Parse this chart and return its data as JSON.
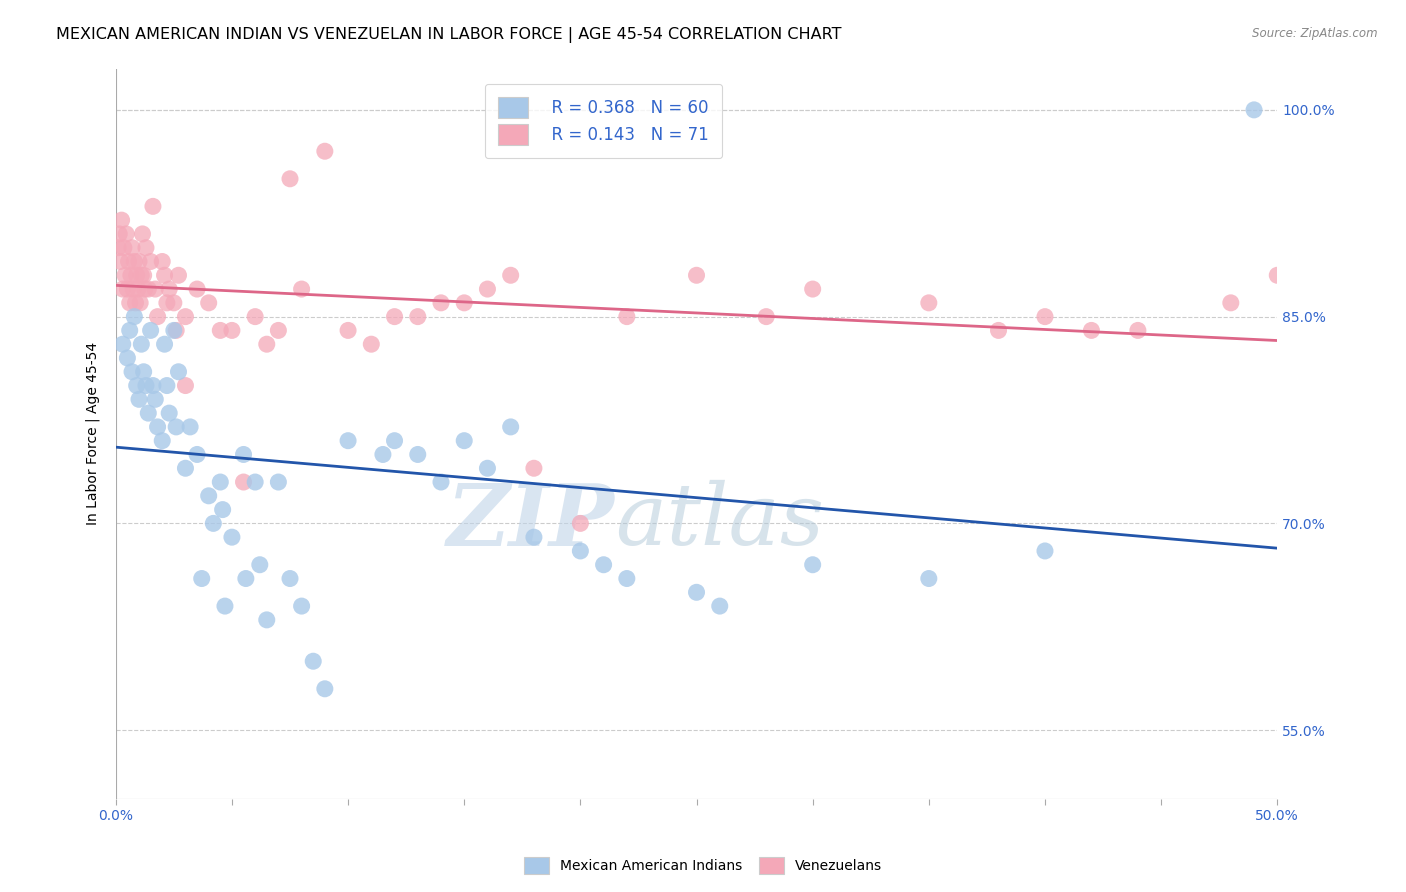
{
  "title": "MEXICAN AMERICAN INDIAN VS VENEZUELAN IN LABOR FORCE | AGE 45-54 CORRELATION CHART",
  "source": "Source: ZipAtlas.com",
  "ylabel": "In Labor Force | Age 45-54",
  "legend_blue_r": "R = 0.368",
  "legend_blue_n": "N = 60",
  "legend_pink_r": "R = 0.143",
  "legend_pink_n": "N = 71",
  "blue_label": "Mexican American Indians",
  "pink_label": "Venezuelans",
  "blue_color": "#a8c8e8",
  "pink_color": "#f4a8b8",
  "blue_line_color": "#2255aa",
  "pink_line_color": "#dd6688",
  "watermark_zip": "ZIP",
  "watermark_atlas": "atlas",
  "blue_points": [
    [
      0.3,
      83.0
    ],
    [
      0.5,
      82.0
    ],
    [
      0.6,
      84.0
    ],
    [
      0.7,
      81.0
    ],
    [
      0.8,
      85.0
    ],
    [
      0.9,
      80.0
    ],
    [
      1.0,
      79.0
    ],
    [
      1.1,
      83.0
    ],
    [
      1.2,
      81.0
    ],
    [
      1.3,
      80.0
    ],
    [
      1.4,
      78.0
    ],
    [
      1.5,
      84.0
    ],
    [
      1.6,
      80.0
    ],
    [
      1.7,
      79.0
    ],
    [
      1.8,
      77.0
    ],
    [
      2.0,
      76.0
    ],
    [
      2.1,
      83.0
    ],
    [
      2.2,
      80.0
    ],
    [
      2.3,
      78.0
    ],
    [
      2.5,
      84.0
    ],
    [
      2.6,
      77.0
    ],
    [
      2.7,
      81.0
    ],
    [
      3.0,
      74.0
    ],
    [
      3.2,
      77.0
    ],
    [
      3.5,
      75.0
    ],
    [
      3.7,
      66.0
    ],
    [
      4.0,
      72.0
    ],
    [
      4.2,
      70.0
    ],
    [
      4.5,
      73.0
    ],
    [
      4.6,
      71.0
    ],
    [
      4.7,
      64.0
    ],
    [
      5.0,
      69.0
    ],
    [
      5.5,
      75.0
    ],
    [
      5.6,
      66.0
    ],
    [
      6.0,
      73.0
    ],
    [
      6.2,
      67.0
    ],
    [
      6.5,
      63.0
    ],
    [
      7.0,
      73.0
    ],
    [
      7.5,
      66.0
    ],
    [
      8.0,
      64.0
    ],
    [
      8.5,
      60.0
    ],
    [
      9.0,
      58.0
    ],
    [
      10.0,
      76.0
    ],
    [
      11.5,
      75.0
    ],
    [
      12.0,
      76.0
    ],
    [
      13.0,
      75.0
    ],
    [
      14.0,
      73.0
    ],
    [
      15.0,
      76.0
    ],
    [
      16.0,
      74.0
    ],
    [
      17.0,
      77.0
    ],
    [
      18.0,
      69.0
    ],
    [
      20.0,
      68.0
    ],
    [
      21.0,
      67.0
    ],
    [
      22.0,
      66.0
    ],
    [
      25.0,
      65.0
    ],
    [
      26.0,
      64.0
    ],
    [
      30.0,
      67.0
    ],
    [
      35.0,
      66.0
    ],
    [
      40.0,
      68.0
    ],
    [
      49.0,
      100.0
    ]
  ],
  "pink_points": [
    [
      0.1,
      90.0
    ],
    [
      0.15,
      91.0
    ],
    [
      0.2,
      89.0
    ],
    [
      0.25,
      92.0
    ],
    [
      0.3,
      87.0
    ],
    [
      0.35,
      90.0
    ],
    [
      0.4,
      88.0
    ],
    [
      0.45,
      91.0
    ],
    [
      0.5,
      87.0
    ],
    [
      0.55,
      89.0
    ],
    [
      0.6,
      86.0
    ],
    [
      0.65,
      88.0
    ],
    [
      0.7,
      90.0
    ],
    [
      0.75,
      87.0
    ],
    [
      0.8,
      89.0
    ],
    [
      0.85,
      86.0
    ],
    [
      0.9,
      88.0
    ],
    [
      0.95,
      87.0
    ],
    [
      1.0,
      89.0
    ],
    [
      1.05,
      86.0
    ],
    [
      1.1,
      88.0
    ],
    [
      1.15,
      91.0
    ],
    [
      1.2,
      88.0
    ],
    [
      1.25,
      87.0
    ],
    [
      1.3,
      90.0
    ],
    [
      1.4,
      87.0
    ],
    [
      1.5,
      89.0
    ],
    [
      1.6,
      93.0
    ],
    [
      1.7,
      87.0
    ],
    [
      1.8,
      85.0
    ],
    [
      2.0,
      89.0
    ],
    [
      2.1,
      88.0
    ],
    [
      2.2,
      86.0
    ],
    [
      2.3,
      87.0
    ],
    [
      2.5,
      86.0
    ],
    [
      2.6,
      84.0
    ],
    [
      2.7,
      88.0
    ],
    [
      3.0,
      85.0
    ],
    [
      3.5,
      87.0
    ],
    [
      4.0,
      86.0
    ],
    [
      4.5,
      84.0
    ],
    [
      5.0,
      84.0
    ],
    [
      5.5,
      73.0
    ],
    [
      6.0,
      85.0
    ],
    [
      6.5,
      83.0
    ],
    [
      7.0,
      84.0
    ],
    [
      7.5,
      95.0
    ],
    [
      8.0,
      87.0
    ],
    [
      9.0,
      97.0
    ],
    [
      10.0,
      84.0
    ],
    [
      11.0,
      83.0
    ],
    [
      12.0,
      85.0
    ],
    [
      13.0,
      85.0
    ],
    [
      14.0,
      86.0
    ],
    [
      15.0,
      86.0
    ],
    [
      16.0,
      87.0
    ],
    [
      17.0,
      88.0
    ],
    [
      18.0,
      74.0
    ],
    [
      20.0,
      70.0
    ],
    [
      22.0,
      85.0
    ],
    [
      25.0,
      88.0
    ],
    [
      28.0,
      85.0
    ],
    [
      30.0,
      87.0
    ],
    [
      35.0,
      86.0
    ],
    [
      38.0,
      84.0
    ],
    [
      40.0,
      85.0
    ],
    [
      42.0,
      84.0
    ],
    [
      44.0,
      84.0
    ],
    [
      48.0,
      86.0
    ],
    [
      50.0,
      88.0
    ],
    [
      3.0,
      80.0
    ]
  ],
  "xmin": 0.0,
  "xmax": 50.0,
  "ymin": 50.0,
  "ymax": 103.0,
  "ytick_positions": [
    55.0,
    70.0,
    85.0,
    100.0
  ],
  "ytick_labels": [
    "55.0%",
    "70.0%",
    "85.0%",
    "100.0%"
  ],
  "grid_color": "#cccccc",
  "background_color": "#ffffff",
  "title_fontsize": 11.5,
  "axis_label_fontsize": 10,
  "tick_fontsize": 10
}
